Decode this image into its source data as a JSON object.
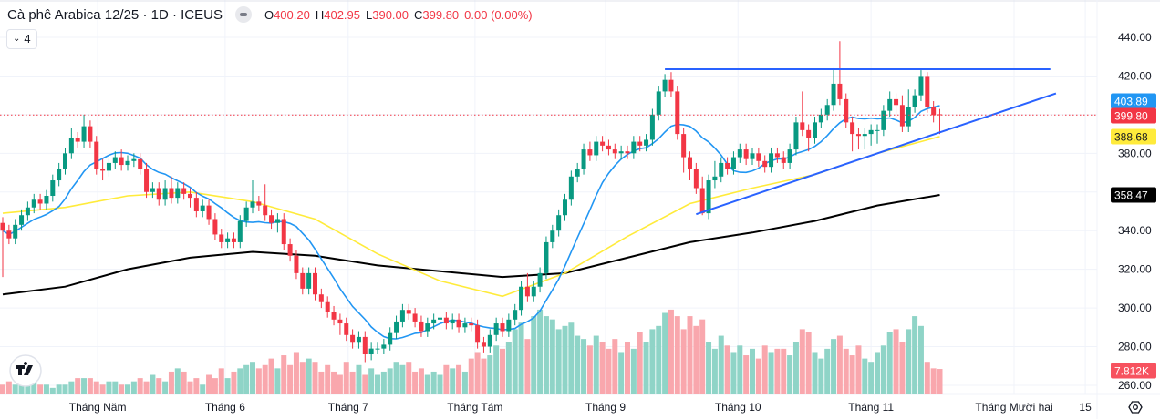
{
  "header": {
    "title": "Cà phê Arabica 12/25 · 1D · ICEUS",
    "ohlc": [
      {
        "key": "O",
        "value": "400.20"
      },
      {
        "key": "H",
        "value": "402.95"
      },
      {
        "key": "L",
        "value": "390.00"
      },
      {
        "key": "C",
        "value": "399.80"
      }
    ],
    "change": "0.00 (0.00%)",
    "indicators_toggle_count": "4",
    "status_icon": "market-status-pill-icon"
  },
  "colors": {
    "up": "#089981",
    "down": "#f23645",
    "volume_up": "#8fd4c7",
    "volume_down": "#f9a7ad",
    "ma_fast": "#2196f3",
    "ma_mid": "#ffeb3b",
    "ma_slow": "#000000",
    "trendline": "#2962ff",
    "price_line": "#f23645"
  },
  "chart_data": {
    "type": "candlestick",
    "title": "",
    "ylim": [
      255,
      445
    ],
    "grid": true,
    "y_ticks": [
      "440.00",
      "420.00",
      "380.00",
      "340.00",
      "320.00",
      "300.00",
      "280.00",
      "260.00"
    ],
    "y_tick_values": [
      440,
      420,
      380,
      340,
      320,
      300,
      280,
      260
    ],
    "x_ticks": [
      {
        "label": "Tháng Năm",
        "bar": 15.2
      },
      {
        "label": "Tháng 6",
        "bar": 35.6
      },
      {
        "label": "Tháng 7",
        "bar": 55.3
      },
      {
        "label": "Tháng Tám",
        "bar": 75.6
      },
      {
        "label": "Tháng 9",
        "bar": 96.5
      },
      {
        "label": "Tháng 10",
        "bar": 117.7
      },
      {
        "label": "Tháng 11",
        "bar": 139
      },
      {
        "label": "Tháng Mười hai",
        "bar": 161.9
      },
      {
        "label": "15",
        "bar": 173.3
      }
    ],
    "open": [
      344,
      340,
      336,
      343,
      348,
      352,
      356,
      354,
      358,
      366,
      372,
      380,
      388,
      386,
      394,
      386,
      372,
      371,
      375,
      378,
      374,
      376,
      377,
      372,
      360,
      362,
      356,
      362,
      357,
      362,
      359,
      357,
      350,
      353,
      346,
      338,
      334,
      336,
      334,
      345,
      352,
      355,
      353,
      348,
      344,
      346,
      333,
      327,
      318,
      310,
      318,
      307,
      303,
      298,
      294,
      292,
      286,
      282,
      285,
      276,
      279,
      279,
      281,
      287,
      293,
      299,
      297,
      293,
      288,
      292,
      294,
      295,
      292,
      294,
      290,
      292,
      291,
      282,
      280,
      286,
      292,
      288,
      294,
      299,
      311,
      306,
      311,
      318,
      334,
      340,
      348,
      356,
      368,
      372,
      382,
      379,
      386,
      384,
      382,
      380,
      381,
      380,
      386,
      384,
      387,
      400,
      412,
      418,
      412,
      390,
      378,
      372,
      362,
      349,
      366,
      368,
      375,
      372,
      378,
      382,
      377,
      380,
      376,
      373,
      380,
      378,
      375,
      382,
      396,
      392,
      388,
      396,
      400,
      405,
      416,
      408,
      396,
      390,
      389,
      390,
      392,
      392,
      402,
      408,
      405,
      394,
      404,
      410,
      420,
      404,
      400.2
    ],
    "high": [
      347,
      343,
      346,
      351,
      355,
      359,
      359,
      361,
      369,
      375,
      383,
      393,
      391,
      400,
      397,
      389,
      377,
      378,
      381,
      382,
      379,
      380,
      380,
      375,
      365,
      365,
      366,
      368,
      365,
      365,
      362,
      360,
      356,
      356,
      349,
      341,
      339,
      339,
      348,
      355,
      366,
      358,
      364,
      351,
      349,
      349,
      336,
      330,
      321,
      321,
      321,
      310,
      306,
      301,
      297,
      295,
      289,
      288,
      288,
      282,
      282,
      284,
      290,
      296,
      302,
      302,
      300,
      296,
      295,
      297,
      298,
      298,
      297,
      297,
      295,
      295,
      294,
      285,
      289,
      295,
      295,
      297,
      302,
      314,
      318,
      314,
      321,
      337,
      343,
      351,
      359,
      371,
      375,
      385,
      386,
      389,
      389,
      387,
      385,
      384,
      384,
      389,
      389,
      390,
      403,
      415,
      421,
      422,
      415,
      393,
      381,
      375,
      368,
      369,
      376,
      378,
      378,
      381,
      385,
      385,
      383,
      383,
      379,
      383,
      383,
      381,
      385,
      399,
      412,
      395,
      399,
      403,
      408,
      424,
      438,
      411,
      399,
      393,
      393,
      395,
      395,
      405,
      412,
      411,
      410,
      413,
      413,
      423,
      422,
      407,
      402.95
    ],
    "low": [
      316,
      333,
      333,
      340,
      345,
      349,
      351,
      351,
      355,
      363,
      369,
      377,
      383,
      383,
      383,
      369,
      366,
      368,
      372,
      371,
      371,
      373,
      369,
      357,
      357,
      353,
      353,
      354,
      354,
      356,
      352,
      347,
      347,
      343,
      335,
      331,
      331,
      331,
      331,
      342,
      349,
      350,
      345,
      341,
      339,
      330,
      324,
      315,
      307,
      307,
      304,
      300,
      295,
      291,
      286,
      283,
      279,
      279,
      272,
      273,
      276,
      276,
      278,
      284,
      290,
      294,
      290,
      285,
      285,
      289,
      291,
      289,
      289,
      287,
      287,
      288,
      279,
      277,
      277,
      283,
      285,
      285,
      291,
      296,
      303,
      303,
      308,
      315,
      331,
      337,
      345,
      353,
      365,
      369,
      376,
      376,
      381,
      379,
      377,
      377,
      377,
      377,
      381,
      381,
      384,
      397,
      409,
      409,
      387,
      370,
      366,
      359,
      348,
      346,
      362,
      365,
      369,
      369,
      375,
      374,
      374,
      373,
      370,
      370,
      375,
      372,
      372,
      379,
      389,
      381,
      385,
      393,
      397,
      402,
      405,
      393,
      381,
      382,
      382,
      384,
      385,
      389,
      399,
      398,
      391,
      391,
      401,
      407,
      401,
      396,
      390
    ],
    "close": [
      340,
      336,
      343,
      348,
      352,
      356,
      354,
      358,
      366,
      372,
      380,
      388,
      386,
      394,
      386,
      372,
      371,
      375,
      378,
      374,
      376,
      377,
      372,
      360,
      362,
      356,
      362,
      357,
      362,
      359,
      357,
      350,
      353,
      346,
      338,
      334,
      336,
      334,
      345,
      352,
      355,
      353,
      348,
      344,
      346,
      333,
      327,
      318,
      310,
      318,
      307,
      303,
      298,
      294,
      292,
      286,
      282,
      285,
      276,
      279,
      279,
      281,
      287,
      293,
      299,
      297,
      293,
      288,
      292,
      294,
      295,
      292,
      294,
      290,
      292,
      291,
      282,
      280,
      286,
      292,
      288,
      294,
      299,
      311,
      306,
      311,
      318,
      334,
      340,
      348,
      356,
      368,
      372,
      382,
      379,
      386,
      384,
      382,
      380,
      381,
      380,
      386,
      384,
      387,
      400,
      412,
      418,
      412,
      390,
      378,
      372,
      362,
      349,
      366,
      368,
      375,
      372,
      378,
      382,
      377,
      380,
      376,
      373,
      380,
      378,
      375,
      382,
      396,
      392,
      388,
      396,
      400,
      405,
      416,
      408,
      396,
      390,
      389,
      390,
      392,
      392,
      402,
      408,
      405,
      394,
      404,
      410,
      420,
      404,
      399.8,
      399.8
    ],
    "volume_k": [
      3,
      4,
      3,
      5,
      4,
      4,
      3,
      3,
      2,
      3,
      3,
      4,
      5,
      5,
      5,
      4,
      3,
      4,
      4,
      3,
      3,
      4,
      5,
      4,
      6,
      5,
      4,
      7,
      8,
      7,
      4,
      5,
      3,
      6,
      5,
      8,
      5,
      7,
      8,
      9,
      10,
      8,
      9,
      11,
      8,
      12,
      9,
      13,
      10,
      11,
      10,
      7,
      9,
      7,
      6,
      10,
      7,
      9,
      6,
      8,
      6,
      7,
      8,
      10,
      9,
      10,
      7,
      8,
      6,
      7,
      6,
      9,
      8,
      9,
      7,
      11,
      13,
      11,
      12,
      15,
      14,
      16,
      20,
      22,
      17,
      24,
      26,
      24,
      23,
      20,
      21,
      22,
      18,
      17,
      15,
      18,
      16,
      14,
      17,
      13,
      16,
      14,
      19,
      16,
      20,
      21,
      25,
      26,
      24,
      20,
      24,
      21,
      23,
      16,
      14,
      18,
      15,
      13,
      15,
      12,
      14,
      11,
      15,
      13,
      14,
      14,
      12,
      16,
      20,
      19,
      13,
      11,
      14,
      17,
      18,
      14,
      12,
      15,
      11,
      10,
      13,
      15,
      19,
      20,
      16,
      20,
      24,
      21,
      10,
      8,
      7.812
    ],
    "ma_fast_period": 10,
    "ma_mid_samples_every_10_bars": [
      349,
      352,
      358,
      360,
      355,
      346,
      328,
      314,
      306,
      318,
      337,
      354,
      362,
      369,
      380,
      388.68
    ],
    "ma_slow_samples_every_10_bars": [
      307,
      311,
      320,
      326,
      329,
      327,
      322,
      319,
      316,
      318,
      326,
      334,
      339,
      345,
      353,
      358.47
    ],
    "trendlines": [
      {
        "kind": "resistance",
        "from": {
          "bar": 106,
          "price": 423.5
        },
        "to": {
          "bar": 167.7,
          "price": 423.5
        }
      },
      {
        "kind": "support",
        "from": {
          "bar": 111,
          "price": 348.5
        },
        "to": {
          "bar": 168.6,
          "price": 411
        }
      }
    ],
    "price_labels": {
      "ma_fast": "403.89",
      "last_price": "399.80",
      "ma_mid": "388.68",
      "ma_slow": "358.47",
      "volume": "7.812K"
    },
    "last_price": 399.8
  },
  "footer": {
    "logo": "TV",
    "settings_icon": "settings-icon"
  }
}
